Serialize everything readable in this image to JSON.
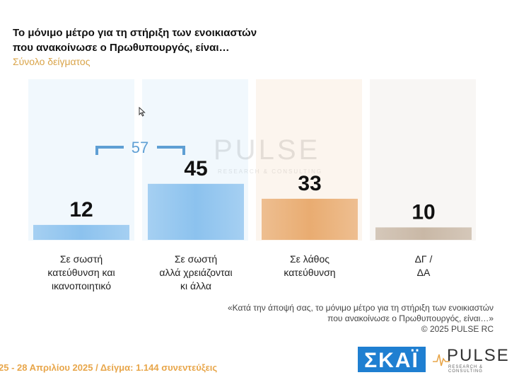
{
  "header": {
    "title_line1": "Το μόνιμο μέτρο για τη στήριξη των ενοικιαστών",
    "title_line2": "που ανακοίνωσε ο Πρωθυπουργός, είναι…",
    "subtitle": "Σύνολο δείγματος"
  },
  "chart_data": {
    "type": "bar",
    "title": "Το μόνιμο μέτρο για τη στήριξη των ενοικιαστών που ανακοίνωσε ο Πρωθυπουργός, είναι…",
    "categories": [
      [
        "Σε σωστή",
        "κατεύθυνση και",
        "ικανοποιητικό"
      ],
      [
        "Σε σωστή",
        "αλλά χρειάζονται",
        "κι άλλα"
      ],
      [
        "Σε λάθος",
        "κατεύθυνση"
      ],
      [
        "ΔΓ /",
        "ΔΑ"
      ]
    ],
    "values": [
      12,
      45,
      33,
      10
    ],
    "value_labels": [
      "12",
      "45",
      "33",
      "10"
    ],
    "colors": [
      "#8cc2ee",
      "#8cc2ee",
      "#e9ac71",
      "#c9b8a6"
    ],
    "bracket_total": "57",
    "ylim": [
      0,
      100
    ]
  },
  "watermark": {
    "word": "PULSE",
    "sub": "RESEARCH & CONSULTING"
  },
  "note": {
    "line1": "«Κατά την άποψή σας, το μόνιμο μέτρο για τη στήριξη των ενοικιαστών",
    "line2": "που ανακοίνωσε ο Πρωθυπουργός, είναι…»",
    "copyright": "©  2025  PULSE RC"
  },
  "footer": {
    "text": "25 - 28 Απριλίου 2025  /  Δείγμα:  1.144 συνεντεύξεις"
  },
  "logos": {
    "skai": "ΣΚΑΪ",
    "pulse": "PULSE",
    "pulse_sub": "RESEARCH & CONSULTING"
  }
}
